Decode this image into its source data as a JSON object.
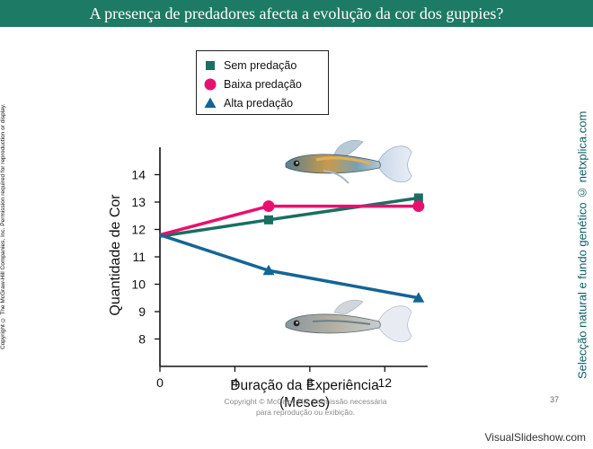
{
  "slide": {
    "title": "A presença de predadores afecta a evolução da cor dos guppies?",
    "left_copyright": "Copyright © The McGraw-Hill Companies, Inc. Permission required for reproduction or display.",
    "right_credit": "Selecção natural e fundo genético © netxplica.com",
    "bottom_copyright": "Copyright © McGraw-Hill: permissão necessária para reprodução ou exibição.",
    "page_number": "37",
    "watermark": "VisualSlideshow.com"
  },
  "images": {
    "fish_top": "colorful-guppy-image",
    "fish_bottom": "dull-guppy-image"
  },
  "chart_data": {
    "type": "line",
    "xlabel": "Duração da Experiência (Meses)",
    "ylabel": "Quantidade de Cor",
    "xlim": [
      0,
      14
    ],
    "ylim": [
      7,
      15
    ],
    "xticks": [
      0,
      4,
      8,
      12
    ],
    "yticks": [
      8,
      9,
      10,
      11,
      12,
      13,
      14
    ],
    "grid": false,
    "legend_position": "top-left",
    "series": [
      {
        "name": "Sem predação",
        "color": "#1a6e63",
        "marker": "square",
        "x": [
          0,
          5.8,
          13.8
        ],
        "y": [
          11.75,
          12.35,
          13.15
        ]
      },
      {
        "name": "Baixa predação",
        "color": "#e8106e",
        "marker": "circle",
        "x": [
          0,
          5.8,
          13.8
        ],
        "y": [
          11.8,
          12.85,
          12.85
        ]
      },
      {
        "name": "Alta predação",
        "color": "#136694",
        "marker": "triangle",
        "x": [
          0,
          5.8,
          13.8
        ],
        "y": [
          11.8,
          10.5,
          9.5
        ]
      }
    ]
  }
}
